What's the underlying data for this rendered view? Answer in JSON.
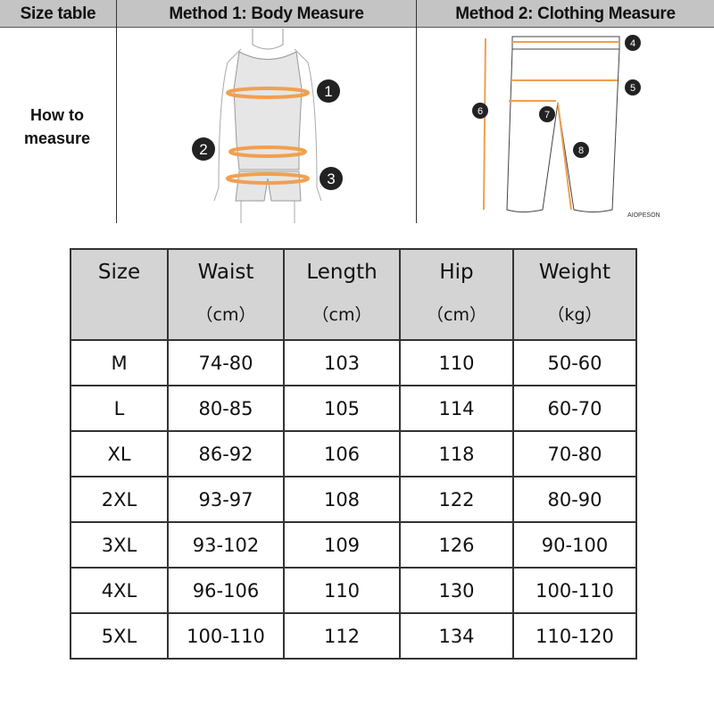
{
  "header": {
    "col1": "Size table",
    "col2": "Method 1: Body  Measure",
    "col3": "Method 2: Clothing Measure"
  },
  "row_label": "How to measure",
  "body_markers": [
    "1",
    "2",
    "3"
  ],
  "clothing_markers": [
    "4",
    "5",
    "6",
    "7",
    "8"
  ],
  "watermark": "AIOPESON",
  "accent_color": "#f0a050",
  "table": {
    "headers": [
      {
        "name": "Size",
        "unit": ""
      },
      {
        "name": "Waist",
        "unit": "（cm）"
      },
      {
        "name": "Length",
        "unit": "（cm）"
      },
      {
        "name": "Hip",
        "unit": "（cm）"
      },
      {
        "name": "Weight",
        "unit": "（kg）"
      }
    ],
    "rows": [
      [
        "M",
        "74-80",
        "103",
        "110",
        "50-60"
      ],
      [
        "L",
        "80-85",
        "105",
        "114",
        "60-70"
      ],
      [
        "XL",
        "86-92",
        "106",
        "118",
        "70-80"
      ],
      [
        "2XL",
        "93-97",
        "108",
        "122",
        "80-90"
      ],
      [
        "3XL",
        "93-102",
        "109",
        "126",
        "90-100"
      ],
      [
        "4XL",
        "96-106",
        "110",
        "130",
        "100-110"
      ],
      [
        "5XL",
        "100-110",
        "112",
        "134",
        "110-120"
      ]
    ]
  }
}
